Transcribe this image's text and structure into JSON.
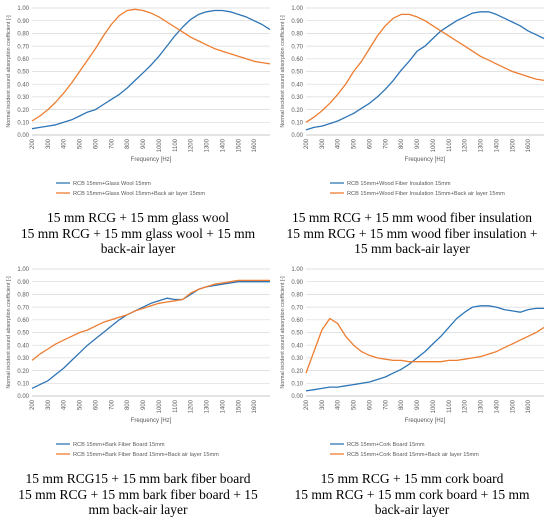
{
  "colors": {
    "series_blue": "#2E75B6",
    "series_orange": "#ED7D31",
    "grid": "#D9D9D9",
    "axis_text": "#595959"
  },
  "chart_data": [
    {
      "type": "line",
      "ylabel": "Normal incident sound absorption coefficient [-]",
      "xlabel": "Frequency [Hz]",
      "xlim": [
        200,
        1700
      ],
      "ylim": [
        0,
        1
      ],
      "xticks": [
        "200",
        "300",
        "400",
        "500",
        "600",
        "700",
        "800",
        "900",
        "1000",
        "1100",
        "1200",
        "1300",
        "1400",
        "1500",
        "1600"
      ],
      "yticks": [
        "0.00",
        "0.10",
        "0.20",
        "0.30",
        "0.40",
        "0.50",
        "0.60",
        "0.70",
        "0.80",
        "0.90",
        "1.00"
      ],
      "grid": true,
      "legend_position": "bottom",
      "series": [
        {
          "name": "RCB 15mm+Glass Wool 15mm",
          "x": [
            200,
            250,
            300,
            350,
            400,
            450,
            500,
            550,
            600,
            650,
            700,
            750,
            800,
            850,
            900,
            950,
            1000,
            1050,
            1100,
            1150,
            1200,
            1250,
            1300,
            1350,
            1400,
            1450,
            1500,
            1550,
            1600,
            1650,
            1700
          ],
          "y": [
            0.05,
            0.06,
            0.07,
            0.08,
            0.1,
            0.12,
            0.15,
            0.18,
            0.2,
            0.24,
            0.28,
            0.32,
            0.37,
            0.43,
            0.49,
            0.55,
            0.62,
            0.7,
            0.78,
            0.85,
            0.91,
            0.95,
            0.97,
            0.98,
            0.98,
            0.97,
            0.95,
            0.93,
            0.9,
            0.87,
            0.83
          ]
        },
        {
          "name": "RCB 15mm+Glass Wool 15mm+Back air layer 15mm",
          "x": [
            200,
            250,
            300,
            350,
            400,
            450,
            500,
            550,
            600,
            650,
            700,
            750,
            800,
            850,
            900,
            950,
            1000,
            1050,
            1100,
            1150,
            1200,
            1250,
            1300,
            1350,
            1400,
            1450,
            1500,
            1550,
            1600,
            1650,
            1700
          ],
          "y": [
            0.11,
            0.15,
            0.2,
            0.26,
            0.33,
            0.41,
            0.5,
            0.59,
            0.68,
            0.78,
            0.87,
            0.94,
            0.98,
            0.99,
            0.98,
            0.96,
            0.93,
            0.89,
            0.85,
            0.81,
            0.77,
            0.74,
            0.71,
            0.68,
            0.66,
            0.64,
            0.62,
            0.6,
            0.58,
            0.57,
            0.56
          ]
        }
      ]
    },
    {
      "type": "line",
      "ylabel": "Normal incident sound absorption coefficient [-]",
      "xlabel": "Frequency [Hz]",
      "xlim": [
        200,
        1700
      ],
      "ylim": [
        0,
        1
      ],
      "xticks": [
        "200",
        "300",
        "400",
        "500",
        "600",
        "700",
        "800",
        "900",
        "1000",
        "1100",
        "1200",
        "1300",
        "1400",
        "1500",
        "1600"
      ],
      "yticks": [
        "0.00",
        "0.10",
        "0.20",
        "0.30",
        "0.40",
        "0.50",
        "0.60",
        "0.70",
        "0.80",
        "0.90",
        "1.00"
      ],
      "grid": true,
      "legend_position": "bottom",
      "series": [
        {
          "name": "RCB 15mm+Wood Fiber Insulation 15mm",
          "x": [
            200,
            250,
            300,
            350,
            400,
            450,
            500,
            550,
            600,
            650,
            700,
            750,
            800,
            850,
            900,
            950,
            1000,
            1050,
            1100,
            1150,
            1200,
            1250,
            1300,
            1350,
            1400,
            1450,
            1500,
            1550,
            1600,
            1650,
            1700
          ],
          "y": [
            0.04,
            0.06,
            0.07,
            0.09,
            0.11,
            0.14,
            0.17,
            0.21,
            0.25,
            0.3,
            0.36,
            0.43,
            0.51,
            0.58,
            0.66,
            0.7,
            0.76,
            0.82,
            0.86,
            0.9,
            0.93,
            0.96,
            0.97,
            0.97,
            0.95,
            0.92,
            0.89,
            0.86,
            0.82,
            0.79,
            0.76
          ]
        },
        {
          "name": "RCB 15mm+Wood Fiber Insulation 15mm+Back air layer 15mm",
          "x": [
            200,
            250,
            300,
            350,
            400,
            450,
            500,
            550,
            600,
            650,
            700,
            750,
            800,
            850,
            900,
            950,
            1000,
            1050,
            1100,
            1150,
            1200,
            1250,
            1300,
            1350,
            1400,
            1450,
            1500,
            1550,
            1600,
            1650,
            1700
          ],
          "y": [
            0.1,
            0.14,
            0.19,
            0.25,
            0.32,
            0.4,
            0.5,
            0.58,
            0.68,
            0.78,
            0.86,
            0.92,
            0.95,
            0.95,
            0.93,
            0.9,
            0.86,
            0.82,
            0.78,
            0.74,
            0.7,
            0.66,
            0.62,
            0.59,
            0.56,
            0.53,
            0.5,
            0.48,
            0.46,
            0.44,
            0.43
          ]
        }
      ]
    },
    {
      "type": "line",
      "ylabel": "Normal incident sound absorption coefficient [-]",
      "xlabel": "Frequency [Hz]",
      "xlim": [
        200,
        1700
      ],
      "ylim": [
        0,
        1
      ],
      "xticks": [
        "200",
        "300",
        "400",
        "500",
        "600",
        "700",
        "800",
        "900",
        "1000",
        "1100",
        "1200",
        "1300",
        "1400",
        "1500",
        "1600"
      ],
      "yticks": [
        "0.00",
        "0.10",
        "0.20",
        "0.30",
        "0.40",
        "0.50",
        "0.60",
        "0.70",
        "0.80",
        "0.90",
        "1.00"
      ],
      "grid": true,
      "legend_position": "bottom",
      "series": [
        {
          "name": "RCB 15mm+Bark Fiber Board 15mm",
          "x": [
            200,
            250,
            300,
            350,
            400,
            450,
            500,
            550,
            600,
            650,
            700,
            750,
            800,
            850,
            900,
            950,
            1000,
            1050,
            1100,
            1150,
            1200,
            1250,
            1300,
            1350,
            1400,
            1450,
            1500,
            1550,
            1600,
            1650,
            1700
          ],
          "y": [
            0.06,
            0.09,
            0.12,
            0.17,
            0.22,
            0.28,
            0.34,
            0.4,
            0.45,
            0.5,
            0.55,
            0.6,
            0.64,
            0.67,
            0.7,
            0.73,
            0.75,
            0.77,
            0.76,
            0.76,
            0.8,
            0.84,
            0.86,
            0.87,
            0.88,
            0.89,
            0.9,
            0.9,
            0.9,
            0.9,
            0.9
          ]
        },
        {
          "name": "RCB 15mm+Bark Fiber Board 15mm+Back air layer 15mm",
          "x": [
            200,
            250,
            300,
            350,
            400,
            450,
            500,
            550,
            600,
            650,
            700,
            750,
            800,
            850,
            900,
            950,
            1000,
            1050,
            1100,
            1150,
            1200,
            1250,
            1300,
            1350,
            1400,
            1450,
            1500,
            1550,
            1600,
            1650,
            1700
          ],
          "y": [
            0.28,
            0.33,
            0.37,
            0.41,
            0.44,
            0.47,
            0.5,
            0.52,
            0.55,
            0.58,
            0.6,
            0.62,
            0.64,
            0.67,
            0.69,
            0.71,
            0.73,
            0.74,
            0.75,
            0.76,
            0.81,
            0.84,
            0.86,
            0.88,
            0.89,
            0.9,
            0.91,
            0.91,
            0.91,
            0.91,
            0.91
          ]
        }
      ]
    },
    {
      "type": "line",
      "ylabel": "Normal incident sound absorption coefficient [-]",
      "xlabel": "Frequency [Hz]",
      "xlim": [
        200,
        1700
      ],
      "ylim": [
        0,
        1
      ],
      "xticks": [
        "200",
        "300",
        "400",
        "500",
        "600",
        "700",
        "800",
        "900",
        "1000",
        "1100",
        "1200",
        "1300",
        "1400",
        "1500",
        "1600"
      ],
      "yticks": [
        "0.00",
        "0.10",
        "0.20",
        "0.30",
        "0.40",
        "0.50",
        "0.60",
        "0.70",
        "0.80",
        "0.90",
        "1.00"
      ],
      "grid": true,
      "legend_position": "bottom",
      "series": [
        {
          "name": "RCB 15mm+Cork Board 15mm",
          "x": [
            200,
            250,
            300,
            350,
            400,
            450,
            500,
            550,
            600,
            650,
            700,
            750,
            800,
            850,
            900,
            950,
            1000,
            1050,
            1100,
            1150,
            1200,
            1250,
            1300,
            1350,
            1400,
            1450,
            1500,
            1550,
            1600,
            1650,
            1700
          ],
          "y": [
            0.04,
            0.05,
            0.06,
            0.07,
            0.07,
            0.08,
            0.09,
            0.1,
            0.11,
            0.13,
            0.15,
            0.18,
            0.21,
            0.25,
            0.3,
            0.35,
            0.41,
            0.47,
            0.54,
            0.61,
            0.66,
            0.7,
            0.71,
            0.71,
            0.7,
            0.68,
            0.67,
            0.66,
            0.68,
            0.69,
            0.69
          ]
        },
        {
          "name": "RCB 15mm+Cork Board 15mm+Back air layer 15mm",
          "x": [
            200,
            250,
            300,
            350,
            400,
            450,
            500,
            550,
            600,
            650,
            700,
            750,
            800,
            850,
            900,
            950,
            1000,
            1050,
            1100,
            1150,
            1200,
            1250,
            1300,
            1350,
            1400,
            1450,
            1500,
            1550,
            1600,
            1650,
            1700
          ],
          "y": [
            0.18,
            0.35,
            0.52,
            0.61,
            0.57,
            0.47,
            0.4,
            0.35,
            0.32,
            0.3,
            0.29,
            0.28,
            0.28,
            0.27,
            0.27,
            0.27,
            0.27,
            0.27,
            0.28,
            0.28,
            0.29,
            0.3,
            0.31,
            0.33,
            0.35,
            0.38,
            0.41,
            0.44,
            0.47,
            0.5,
            0.54
          ]
        }
      ]
    }
  ],
  "captions": [
    {
      "line1": "15 mm RCG + 15 mm glass wool",
      "line2": "15 mm RCG + 15 mm glass wool + 15 mm",
      "line3": "back-air layer"
    },
    {
      "line1": "15 mm RCG + 15 mm wood fiber insulation",
      "line2": "15 mm RCG + 15 mm wood fiber insulation +",
      "line3": "15 mm back-air layer"
    },
    {
      "line1": "15 mm RCG15 + 15 mm bark fiber board",
      "line2": "15 mm RCG + 15 mm bark fiber board + 15",
      "line3": "mm back-air layer"
    },
    {
      "line1": "15 mm RCG + 15 mm cork board",
      "line2": "15 mm RCG + 15 mm cork board + 15 mm",
      "line3": "back-air layer"
    }
  ]
}
